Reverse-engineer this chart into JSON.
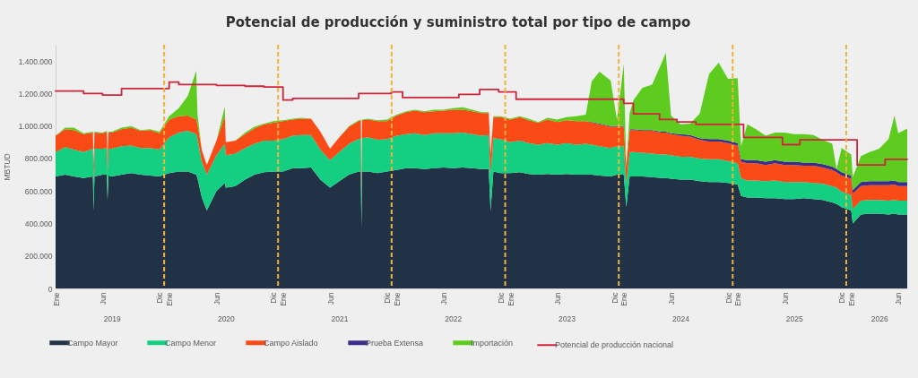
{
  "chart_data": {
    "type": "area",
    "title": "Potencial de producción y suministro total por tipo de campo",
    "ylabel": "MBTUD",
    "stacked": true,
    "legend": "bottom",
    "xlim": [
      "2019-01-01",
      "2026-06-30"
    ],
    "xticks": [
      {
        "value": "2019-01-01",
        "label": "Ene"
      },
      {
        "value": "2019-06-01",
        "label": "Jun"
      },
      {
        "value": "2019-12-01",
        "label": "Dic"
      },
      {
        "value": "2020-01-01",
        "label": "Ene"
      },
      {
        "value": "2020-06-01",
        "label": "Jun"
      },
      {
        "value": "2020-12-01",
        "label": "Dic"
      },
      {
        "value": "2021-01-01",
        "label": "Ene"
      },
      {
        "value": "2021-06-01",
        "label": "Jun"
      },
      {
        "value": "2021-12-01",
        "label": "Dic"
      },
      {
        "value": "2022-01-01",
        "label": "Ene"
      },
      {
        "value": "2022-06-01",
        "label": "Jun"
      },
      {
        "value": "2022-12-01",
        "label": "Dic"
      },
      {
        "value": "2023-01-01",
        "label": "Ene"
      },
      {
        "value": "2023-06-01",
        "label": "Jun"
      },
      {
        "value": "2023-12-01",
        "label": "Dic"
      },
      {
        "value": "2024-01-01",
        "label": "Ene"
      },
      {
        "value": "2024-06-01",
        "label": "Jun"
      },
      {
        "value": "2024-12-01",
        "label": "Dic"
      },
      {
        "value": "2025-01-01",
        "label": "Ene"
      },
      {
        "value": "2025-06-01",
        "label": "Jun"
      },
      {
        "value": "2025-12-01",
        "label": "Dic"
      },
      {
        "value": "2026-01-01",
        "label": "Ene"
      },
      {
        "value": "2026-06-01",
        "label": "Jun"
      }
    ],
    "x2lim": [
      "2019-01-01",
      "2026-06-30"
    ],
    "x2ticks": [
      {
        "value": "2019-07-01",
        "label": "2019"
      },
      {
        "value": "2020-07-01",
        "label": "2020"
      },
      {
        "value": "2021-07-01",
        "label": "2021"
      },
      {
        "value": "2022-07-01",
        "label": "2022"
      },
      {
        "value": "2023-07-01",
        "label": "2023"
      },
      {
        "value": "2024-07-01",
        "label": "2024"
      },
      {
        "value": "2025-07-01",
        "label": "2025"
      },
      {
        "value": "2026-04-01",
        "label": "2026"
      }
    ],
    "ylim": [
      0,
      1500000
    ],
    "yticks": [
      0,
      {
        "value": 200000,
        "label": "200.000"
      },
      {
        "value": 400000,
        "label": "400.000"
      },
      {
        "value": 600000,
        "label": "600.000"
      },
      {
        "value": 800000,
        "label": "800.000"
      },
      {
        "value": 1000000,
        "label": "1.000.000"
      },
      {
        "value": 1200000,
        "label": "1.200.000"
      },
      {
        "value": 1400000,
        "label": "1.400.000"
      }
    ],
    "ref_lines": [
      {
        "axis": "x",
        "value": "2019-12-16",
        "color": "#f2b13c",
        "line_style": "dashed"
      },
      {
        "axis": "x",
        "value": "2020-12-16",
        "color": "#f2b13c",
        "line_style": "dashed"
      },
      {
        "axis": "x",
        "value": "2021-12-16",
        "color": "#f2b13c",
        "line_style": "dashed"
      },
      {
        "axis": "x",
        "value": "2022-12-16",
        "color": "#f2b13c",
        "line_style": "dashed"
      },
      {
        "axis": "x",
        "value": "2023-12-16",
        "color": "#f2b13c",
        "line_style": "dashed"
      },
      {
        "axis": "x",
        "value": "2024-12-16",
        "color": "#f2b13c",
        "line_style": "dashed"
      },
      {
        "axis": "x",
        "value": "2025-12-16",
        "color": "#f2b13c",
        "line_style": "dashed"
      }
    ],
    "x": [
      "2019-01-01",
      "2019-02-01",
      "2019-03-01",
      "2019-04-01",
      "2019-05-01",
      "2019-05-03",
      "2019-05-06",
      "2019-06-01",
      "2019-06-15",
      "2019-06-17",
      "2019-06-20",
      "2019-07-01",
      "2019-08-01",
      "2019-09-01",
      "2019-10-01",
      "2019-11-01",
      "2019-12-01",
      "2020-01-01",
      "2020-02-01",
      "2020-03-01",
      "2020-03-28",
      "2020-04-01",
      "2020-04-15",
      "2020-05-01",
      "2020-06-01",
      "2020-06-28",
      "2020-07-01",
      "2020-08-01",
      "2020-09-01",
      "2020-10-01",
      "2020-11-01",
      "2020-12-01",
      "2021-01-01",
      "2021-02-01",
      "2021-03-01",
      "2021-04-01",
      "2021-05-01",
      "2021-06-01",
      "2021-07-01",
      "2021-08-01",
      "2021-09-01",
      "2021-09-08",
      "2021-09-10",
      "2021-09-12",
      "2021-10-01",
      "2021-11-01",
      "2021-12-01",
      "2022-01-01",
      "2022-02-01",
      "2022-03-01",
      "2022-04-01",
      "2022-05-01",
      "2022-06-01",
      "2022-07-01",
      "2022-08-01",
      "2022-09-01",
      "2022-10-01",
      "2022-10-24",
      "2022-10-30",
      "2022-11-08",
      "2022-12-01",
      "2023-01-01",
      "2023-02-01",
      "2023-03-01",
      "2023-04-01",
      "2023-05-01",
      "2023-06-01",
      "2023-07-01",
      "2023-08-01",
      "2023-09-01",
      "2023-09-20",
      "2023-10-15",
      "2023-11-20",
      "2023-12-10",
      "2024-01-01",
      "2024-01-09",
      "2024-01-20",
      "2024-02-01",
      "2024-03-01",
      "2024-04-01",
      "2024-05-01",
      "2024-05-15",
      "2024-06-01",
      "2024-07-01",
      "2024-08-01",
      "2024-09-01",
      "2024-10-01",
      "2024-11-01",
      "2024-12-01",
      "2025-01-01",
      "2025-01-12",
      "2025-02-01",
      "2025-03-01",
      "2025-04-01",
      "2025-05-01",
      "2025-06-01",
      "2025-07-01",
      "2025-08-01",
      "2025-09-01",
      "2025-10-01",
      "2025-11-01",
      "2025-11-15",
      "2025-12-01",
      "2026-01-01",
      "2026-01-06",
      "2026-02-01",
      "2026-03-01",
      "2026-04-01",
      "2026-05-01",
      "2026-05-20",
      "2026-06-01",
      "2026-06-30"
    ],
    "series": [
      {
        "name": "Campo Mayor",
        "color": "#213247",
        "values": [
          690000,
          700000,
          690000,
          680000,
          690000,
          480000,
          690000,
          700000,
          700000,
          545000,
          695000,
          690000,
          700000,
          710000,
          700000,
          695000,
          690000,
          710000,
          720000,
          720000,
          700000,
          680000,
          560000,
          480000,
          600000,
          650000,
          620000,
          630000,
          670000,
          700000,
          715000,
          720000,
          720000,
          740000,
          740000,
          745000,
          670000,
          620000,
          660000,
          700000,
          720000,
          720000,
          380000,
          720000,
          720000,
          710000,
          720000,
          730000,
          740000,
          740000,
          735000,
          740000,
          745000,
          740000,
          745000,
          740000,
          735000,
          735000,
          480000,
          720000,
          710000,
          710000,
          715000,
          705000,
          700000,
          705000,
          700000,
          705000,
          700000,
          700000,
          700000,
          695000,
          690000,
          700000,
          700000,
          500000,
          690000,
          690000,
          690000,
          685000,
          680000,
          680000,
          675000,
          670000,
          670000,
          660000,
          655000,
          655000,
          650000,
          640000,
          570000,
          560000,
          560000,
          555000,
          555000,
          550000,
          550000,
          555000,
          550000,
          545000,
          530000,
          520000,
          500000,
          480000,
          400000,
          455000,
          460000,
          460000,
          455000,
          460000,
          455000,
          455000
        ]
      },
      {
        "name": "Campo Menor",
        "color": "#14cf82",
        "values": [
          150000,
          170000,
          165000,
          160000,
          170000,
          170000,
          170000,
          160000,
          165000,
          165000,
          165000,
          170000,
          175000,
          170000,
          165000,
          170000,
          165000,
          220000,
          240000,
          250000,
          250000,
          240000,
          220000,
          220000,
          220000,
          240000,
          200000,
          200000,
          195000,
          190000,
          195000,
          190000,
          200000,
          200000,
          205000,
          200000,
          185000,
          170000,
          180000,
          190000,
          200000,
          205000,
          205000,
          205000,
          210000,
          205000,
          200000,
          210000,
          210000,
          215000,
          210000,
          215000,
          210000,
          215000,
          215000,
          210000,
          205000,
          210000,
          220000,
          205000,
          210000,
          190000,
          195000,
          190000,
          185000,
          190000,
          185000,
          190000,
          185000,
          190000,
          185000,
          180000,
          175000,
          175000,
          175000,
          150000,
          150000,
          150000,
          145000,
          145000,
          145000,
          145000,
          145000,
          140000,
          140000,
          140000,
          140000,
          140000,
          135000,
          130000,
          110000,
          105000,
          105000,
          105000,
          110000,
          105000,
          105000,
          100000,
          100000,
          100000,
          100000,
          100000,
          95000,
          95000,
          90000,
          85000,
          85000,
          85000,
          85000,
          85000,
          85000,
          85000
        ]
      },
      {
        "name": "Campo Aislado",
        "color": "#fa4a16",
        "values": [
          100000,
          110000,
          120000,
          110000,
          100000,
          100000,
          100000,
          95000,
          100000,
          100000,
          100000,
          100000,
          105000,
          110000,
          105000,
          110000,
          100000,
          110000,
          100000,
          95000,
          90000,
          90000,
          70000,
          60000,
          90000,
          170000,
          80000,
          80000,
          85000,
          95000,
          100000,
          110000,
          110000,
          100000,
          100000,
          100000,
          110000,
          70000,
          90000,
          105000,
          110000,
          110000,
          110000,
          110000,
          110000,
          115000,
          110000,
          125000,
          135000,
          140000,
          140000,
          135000,
          140000,
          145000,
          140000,
          140000,
          140000,
          135000,
          125000,
          130000,
          135000,
          140000,
          145000,
          140000,
          135000,
          145000,
          140000,
          140000,
          145000,
          140000,
          135000,
          135000,
          130000,
          120000,
          120000,
          100000,
          135000,
          135000,
          135000,
          140000,
          135000,
          135000,
          130000,
          130000,
          125000,
          115000,
          110000,
          110000,
          110000,
          110000,
          100000,
          105000,
          105000,
          100000,
          105000,
          105000,
          105000,
          100000,
          105000,
          100000,
          100000,
          95000,
          100000,
          100000,
          95000,
          90000,
          90000,
          90000,
          95000,
          95000,
          90000,
          90000
        ]
      },
      {
        "name": "Prueba Extensa",
        "color": "#3b2e8a",
        "values": [
          0,
          0,
          0,
          0,
          0,
          0,
          0,
          0,
          0,
          0,
          0,
          0,
          0,
          0,
          0,
          0,
          0,
          0,
          0,
          0,
          0,
          0,
          0,
          0,
          0,
          0,
          0,
          0,
          0,
          0,
          0,
          0,
          0,
          0,
          0,
          0,
          0,
          0,
          0,
          0,
          0,
          0,
          0,
          0,
          0,
          0,
          0,
          0,
          0,
          0,
          0,
          0,
          0,
          0,
          0,
          0,
          0,
          0,
          0,
          0,
          0,
          0,
          0,
          0,
          0,
          0,
          0,
          0,
          0,
          0,
          5000,
          5000,
          5000,
          5000,
          5000,
          0,
          5000,
          5000,
          5000,
          5000,
          5000,
          5000,
          5000,
          10000,
          10000,
          10000,
          15000,
          15000,
          15000,
          15000,
          15000,
          20000,
          20000,
          20000,
          20000,
          20000,
          20000,
          20000,
          20000,
          20000,
          20000,
          20000,
          20000,
          20000,
          20000,
          25000,
          25000,
          25000,
          25000,
          25000,
          25000,
          25000
        ]
      },
      {
        "name": "Importación",
        "color": "#5ecb1f",
        "values": [
          0,
          10000,
          15000,
          5000,
          5000,
          5000,
          5000,
          5000,
          5000,
          5000,
          5000,
          5000,
          10000,
          10000,
          5000,
          5000,
          10000,
          20000,
          50000,
          120000,
          300000,
          60000,
          0,
          0,
          0,
          60000,
          0,
          0,
          10000,
          10000,
          5000,
          10000,
          5000,
          5000,
          5000,
          0,
          0,
          0,
          0,
          5000,
          5000,
          5000,
          5000,
          5000,
          5000,
          5000,
          10000,
          5000,
          5000,
          5000,
          5000,
          10000,
          5000,
          10000,
          15000,
          10000,
          5000,
          5000,
          0,
          5000,
          5000,
          5000,
          5000,
          10000,
          5000,
          10000,
          15000,
          20000,
          30000,
          40000,
          250000,
          320000,
          280000,
          40000,
          380000,
          0,
          100000,
          180000,
          260000,
          280000,
          420000,
          485000,
          110000,
          60000,
          70000,
          150000,
          400000,
          470000,
          380000,
          400000,
          80000,
          220000,
          190000,
          160000,
          170000,
          180000,
          170000,
          175000,
          170000,
          150000,
          140000,
          0,
          150000,
          130000,
          80000,
          160000,
          180000,
          200000,
          260000,
          400000,
          300000,
          330000
        ]
      },
      {
        "name": "Potencial de producción nacional",
        "type": "step",
        "color": "#d0243c",
        "x": [
          "2019-01-01",
          "2019-04-01",
          "2019-06-01",
          "2019-08-01",
          "2020-01-01",
          "2020-02-01",
          "2020-06-01",
          "2020-09-01",
          "2020-11-01",
          "2021-01-01",
          "2021-02-01",
          "2021-09-01",
          "2021-12-15",
          "2022-01-20",
          "2022-07-20",
          "2022-09-25",
          "2022-11-25",
          "2023-01-20",
          "2024-01-01",
          "2024-02-01",
          "2024-04-25",
          "2024-06-20",
          "2024-08-20",
          "2025-01-20",
          "2025-05-25",
          "2025-07-20",
          "2026-01-20",
          "2026-04-20",
          "2026-06-30"
        ],
        "values": [
          1215000,
          1200000,
          1190000,
          1230000,
          1270000,
          1255000,
          1250000,
          1245000,
          1240000,
          1160000,
          1170000,
          1200000,
          1210000,
          1175000,
          1195000,
          1225000,
          1210000,
          1165000,
          1140000,
          1075000,
          1040000,
          1025000,
          1010000,
          930000,
          885000,
          915000,
          760000,
          795000,
          795000
        ]
      }
    ]
  }
}
